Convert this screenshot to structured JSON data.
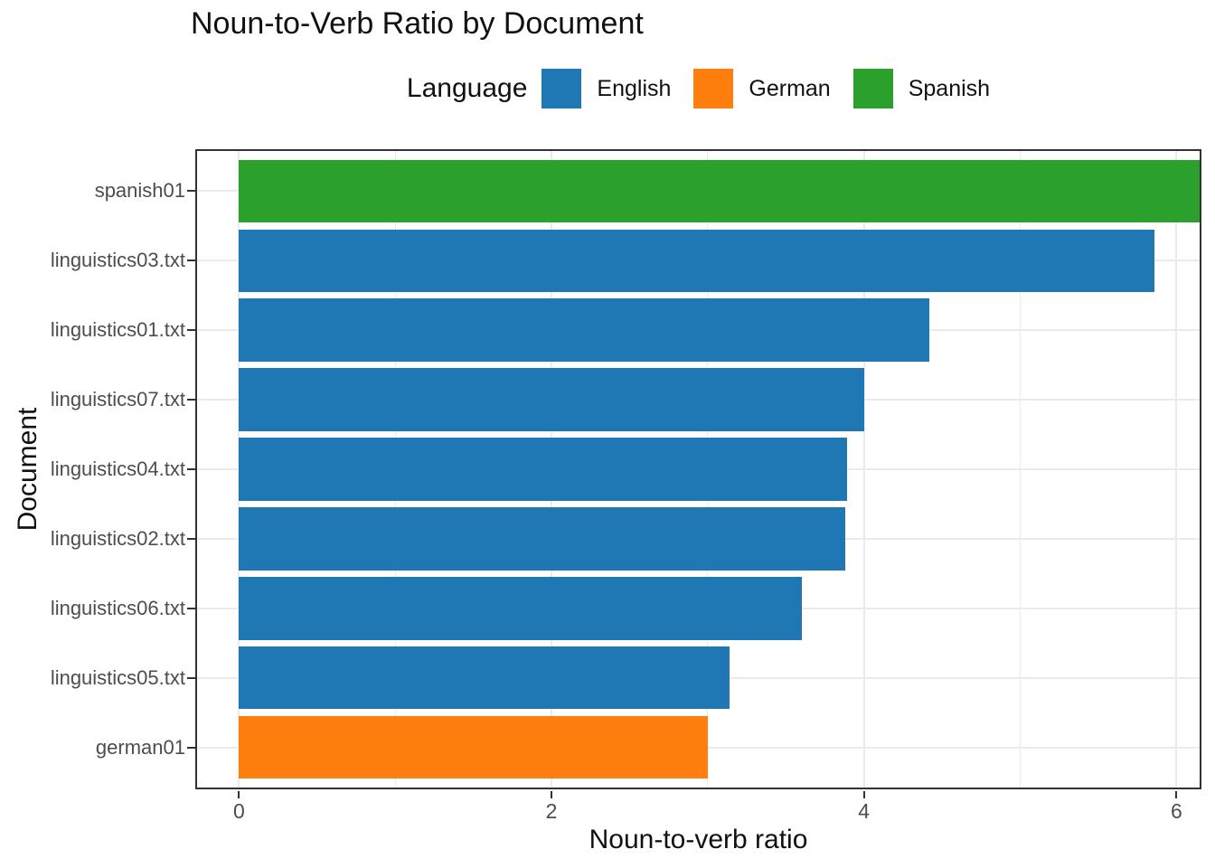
{
  "title": "Noun-to-Verb Ratio by Document",
  "legend": {
    "title": "Language",
    "items": [
      {
        "label": "English",
        "color": "#1f77b4"
      },
      {
        "label": "German",
        "color": "#ff7f0e"
      },
      {
        "label": "Spanish",
        "color": "#2ca02c"
      }
    ]
  },
  "axes": {
    "x_title": "Noun-to-verb ratio",
    "y_title": "Document"
  },
  "chart_data": {
    "type": "bar",
    "orientation": "horizontal",
    "title": "Noun-to-Verb Ratio by Document",
    "xlabel": "Noun-to-verb ratio",
    "ylabel": "Document",
    "categories": [
      "spanish01",
      "linguistics03.txt",
      "linguistics01.txt",
      "linguistics07.txt",
      "linguistics04.txt",
      "linguistics02.txt",
      "linguistics06.txt",
      "linguistics05.txt",
      "german01"
    ],
    "values": [
      6.15,
      5.86,
      4.42,
      4.0,
      3.89,
      3.88,
      3.6,
      3.14,
      3.0
    ],
    "groups": [
      "Spanish",
      "English",
      "English",
      "English",
      "English",
      "English",
      "English",
      "English",
      "German"
    ],
    "group_colors": {
      "English": "#1f77b4",
      "German": "#ff7f0e",
      "Spanish": "#2ca02c"
    },
    "x_major_ticks": [
      0,
      2,
      4,
      6
    ],
    "x_minor_ticks": [
      1,
      3,
      5
    ],
    "xlim": [
      -0.28,
      6.16
    ],
    "bar_width_fraction": 0.9,
    "grid": true,
    "legend_position": "top-center",
    "colors": {
      "panel_border": "#333333",
      "grid_major": "#ebebeb",
      "grid_minor": "#ebebeb",
      "tick": "#333333",
      "axis_text": "#4d4d4d",
      "title_text": "#111111"
    }
  }
}
